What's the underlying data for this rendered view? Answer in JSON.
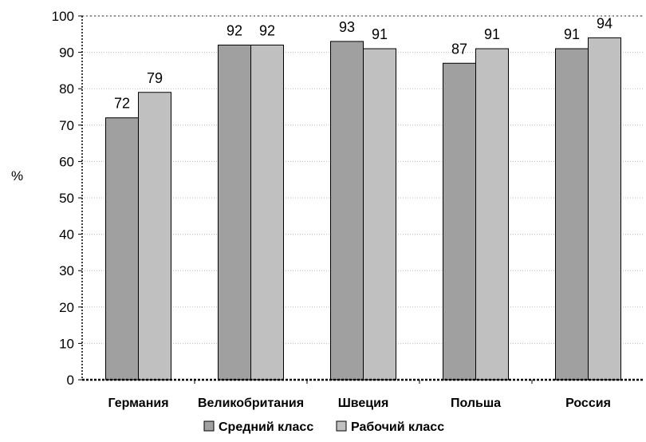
{
  "chart_data": {
    "type": "bar",
    "categories": [
      "Германия",
      "Великобритания",
      "Швеция",
      "Польша",
      "Россия"
    ],
    "series": [
      {
        "name": "Средний класс",
        "values": [
          72,
          92,
          93,
          87,
          91
        ],
        "color": "#a0a0a0"
      },
      {
        "name": "Рабочий класс",
        "values": [
          79,
          92,
          91,
          91,
          94
        ],
        "color": "#c0c0c0"
      }
    ],
    "ylabel": "%",
    "ylim": [
      0,
      100
    ],
    "yticks": [
      0,
      10,
      20,
      30,
      40,
      50,
      60,
      70,
      80,
      90,
      100
    ],
    "grid": true,
    "legend": "bottom-center",
    "data_labels": true
  }
}
